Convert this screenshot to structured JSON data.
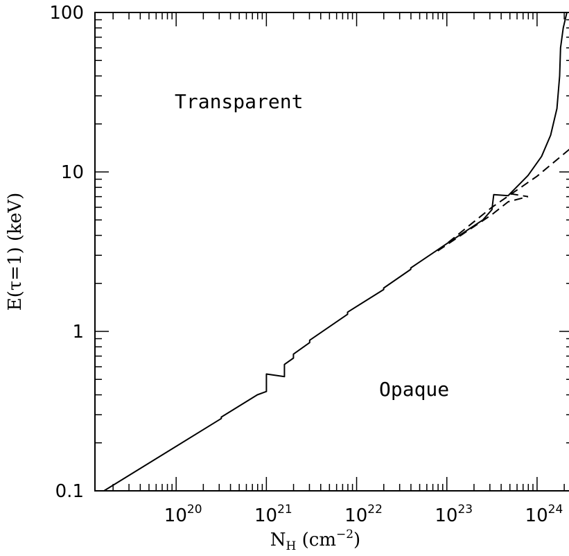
{
  "chart_data": {
    "type": "line",
    "title": "",
    "xlabel": {
      "base": "N",
      "sub": "H",
      "unit_pre": " (cm",
      "unit_sup": "−2",
      "unit_post": ")"
    },
    "ylabel": "E(τ=1)  (keV)",
    "x_scale": "log",
    "y_scale": "log",
    "xlim_log10": [
      19.1,
      24.4
    ],
    "ylim": [
      0.1,
      100
    ],
    "x_ticks": [
      {
        "exp": 20,
        "base": "10",
        "sup": "20"
      },
      {
        "exp": 21,
        "base": "10",
        "sup": "21"
      },
      {
        "exp": 22,
        "base": "10",
        "sup": "22"
      },
      {
        "exp": 23,
        "base": "10",
        "sup": "23"
      },
      {
        "exp": 24,
        "base": "10",
        "sup": "24"
      }
    ],
    "y_ticks": [
      {
        "value": 0.1,
        "label": "0.1"
      },
      {
        "value": 1,
        "label": "1"
      },
      {
        "value": 10,
        "label": "10"
      },
      {
        "value": 100,
        "label": "100"
      }
    ],
    "annotations": {
      "transparent": "Transparent",
      "opaque": "Opaque"
    },
    "series": [
      {
        "style": "solid",
        "points_log10NH": [
          [
            19.2,
            0.1
          ],
          [
            20.5,
            0.284
          ],
          [
            20.5,
            0.29
          ],
          [
            20.9,
            0.4
          ],
          [
            21.0,
            0.42
          ],
          [
            21.0,
            0.54
          ],
          [
            21.2,
            0.52
          ],
          [
            21.2,
            0.62
          ],
          [
            21.3,
            0.68
          ],
          [
            21.3,
            0.72
          ],
          [
            21.48,
            0.85
          ],
          [
            21.48,
            0.88
          ],
          [
            21.9,
            1.28
          ],
          [
            21.9,
            1.32
          ],
          [
            22.3,
            1.83
          ],
          [
            22.3,
            1.87
          ],
          [
            22.6,
            2.45
          ],
          [
            22.6,
            2.5
          ],
          [
            23.0,
            3.55
          ],
          [
            23.4,
            5.0
          ],
          [
            23.5,
            5.8
          ],
          [
            23.52,
            7.2
          ],
          [
            23.68,
            7.1
          ],
          [
            23.7,
            7.3
          ],
          [
            23.9,
            9.5
          ],
          [
            24.05,
            12.5
          ],
          [
            24.15,
            17
          ],
          [
            24.22,
            25
          ],
          [
            24.25,
            40
          ],
          [
            24.26,
            60
          ],
          [
            24.29,
            80
          ],
          [
            24.33,
            100
          ]
        ]
      },
      {
        "style": "dashed",
        "points_log10NH": [
          [
            22.9,
            3.2
          ],
          [
            23.5,
            6.0
          ],
          [
            24.0,
            9.4
          ],
          [
            24.4,
            14.5
          ]
        ]
      },
      {
        "style": "dashed",
        "points_log10NH": [
          [
            22.9,
            3.2
          ],
          [
            23.5,
            5.4
          ],
          [
            23.68,
            6.5
          ],
          [
            23.9,
            7.0
          ]
        ]
      },
      {
        "style": "dashed",
        "points_log10NH": [
          [
            23.7,
            7.3
          ],
          [
            23.9,
            7.0
          ]
        ]
      }
    ]
  }
}
